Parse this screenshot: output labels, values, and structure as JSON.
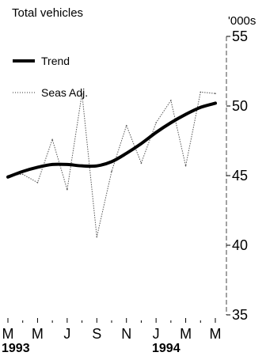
{
  "chart_data": {
    "type": "line",
    "title": "Total vehicles",
    "ylabel": "'000s",
    "ylim": [
      35,
      55
    ],
    "yticks": [
      "55",
      "50",
      "45",
      "40",
      "35"
    ],
    "x_tick_labels": [
      "M",
      "M",
      "J",
      "S",
      "N",
      "J",
      "M",
      "M"
    ],
    "year_labels": [
      "1993",
      "1994"
    ],
    "x": [
      "Mar 1993",
      "Apr 1993",
      "May 1993",
      "Jun 1993",
      "Jul 1993",
      "Aug 1993",
      "Sep 1993",
      "Oct 1993",
      "Nov 1993",
      "Dec 1993",
      "Jan 1994",
      "Feb 1994",
      "Mar 1994",
      "Apr 1994",
      "May 1994"
    ],
    "series": [
      {
        "name": "Trend",
        "values": [
          44.9,
          45.3,
          45.6,
          45.8,
          45.8,
          45.7,
          45.7,
          46.0,
          46.6,
          47.3,
          48.1,
          48.8,
          49.4,
          49.9,
          50.2
        ]
      },
      {
        "name": "Seas Adj.",
        "values": [
          45.0,
          45.1,
          44.5,
          47.6,
          44.0,
          50.9,
          40.6,
          45.3,
          48.6,
          45.9,
          48.8,
          50.4,
          45.7,
          51.0,
          50.9
        ]
      }
    ],
    "legend": "top-left",
    "grid": false
  }
}
